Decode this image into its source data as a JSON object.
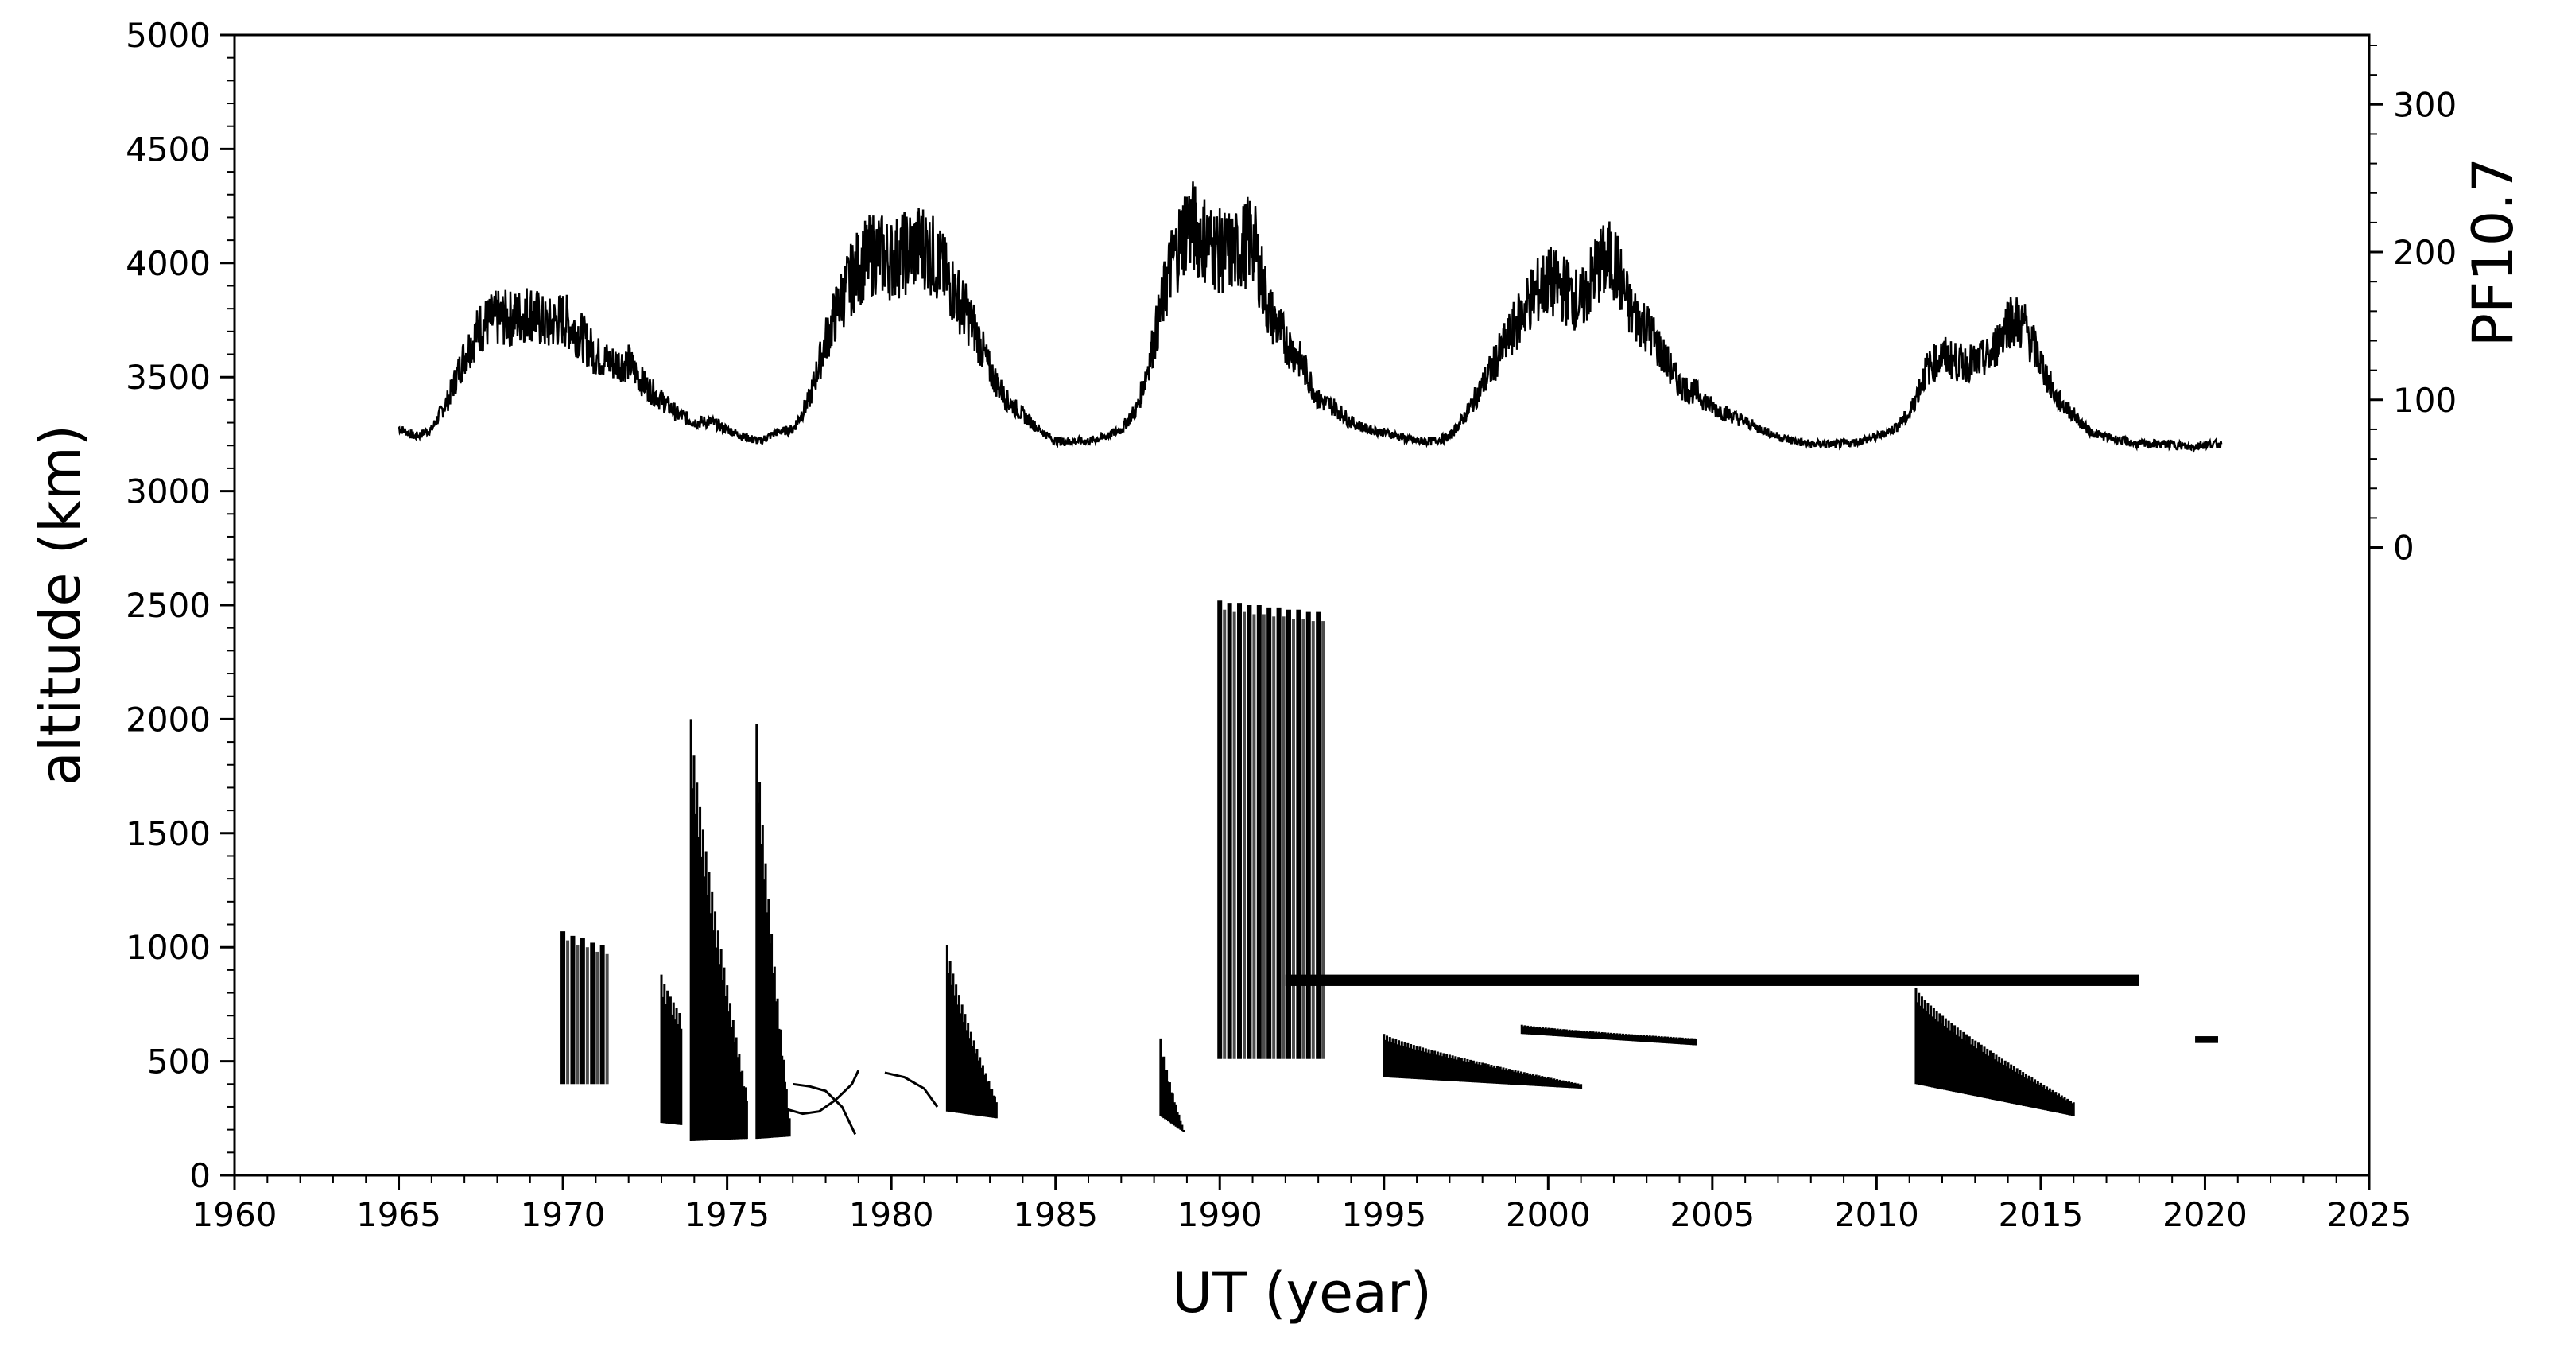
{
  "chart_data": {
    "type": "scatter",
    "title": "",
    "xlabel": "UT (year)",
    "ylabel": "altitude (km)",
    "y2label": "PF10.7",
    "xlim": [
      1960,
      2025
    ],
    "ylim": [
      0,
      5000
    ],
    "y2lim": [
      -425,
      347
    ],
    "grid": false,
    "x_ticks": [
      1960,
      1965,
      1970,
      1975,
      1980,
      1985,
      1990,
      1995,
      2000,
      2005,
      2010,
      2015,
      2020,
      2025
    ],
    "y_ticks": [
      0,
      500,
      1000,
      1500,
      2000,
      2500,
      3000,
      3500,
      4000,
      4500,
      5000
    ],
    "y2_ticks": [
      0,
      100,
      200,
      300
    ],
    "color": "#000000",
    "pf107_series": {
      "name": "PF10.7",
      "x": [
        1965.0,
        1965.5,
        1966.0,
        1966.5,
        1967.0,
        1967.5,
        1968.0,
        1968.5,
        1969.0,
        1969.5,
        1970.0,
        1970.5,
        1971.0,
        1971.5,
        1972.0,
        1972.5,
        1973.0,
        1973.5,
        1974.0,
        1974.5,
        1975.0,
        1975.5,
        1976.0,
        1976.5,
        1977.0,
        1977.5,
        1978.0,
        1978.5,
        1979.0,
        1979.5,
        1980.0,
        1980.5,
        1981.0,
        1981.5,
        1982.0,
        1982.5,
        1983.0,
        1983.5,
        1984.0,
        1984.5,
        1985.0,
        1985.5,
        1986.0,
        1986.5,
        1987.0,
        1987.5,
        1988.0,
        1988.5,
        1989.0,
        1989.5,
        1990.0,
        1990.5,
        1991.0,
        1991.5,
        1992.0,
        1992.5,
        1993.0,
        1993.5,
        1994.0,
        1994.5,
        1995.0,
        1995.5,
        1996.0,
        1996.5,
        1997.0,
        1997.5,
        1998.0,
        1998.5,
        1999.0,
        1999.5,
        2000.0,
        2000.5,
        2001.0,
        2001.5,
        2002.0,
        2002.5,
        2003.0,
        2003.5,
        2004.0,
        2004.5,
        2005.0,
        2005.5,
        2006.0,
        2006.5,
        2007.0,
        2007.5,
        2008.0,
        2008.5,
        2009.0,
        2009.5,
        2010.0,
        2010.5,
        2011.0,
        2011.5,
        2012.0,
        2012.5,
        2013.0,
        2013.5,
        2014.0,
        2014.5,
        2015.0,
        2015.5,
        2016.0,
        2016.5,
        2017.0,
        2017.5,
        2018.0,
        2018.5,
        2019.0,
        2019.5,
        2020.0,
        2020.5
      ],
      "values": [
        81,
        75,
        80,
        100,
        130,
        150,
        155,
        155,
        160,
        150,
        155,
        145,
        130,
        125,
        125,
        110,
        100,
        90,
        85,
        85,
        80,
        75,
        72,
        78,
        80,
        100,
        140,
        170,
        190,
        200,
        195,
        200,
        205,
        190,
        170,
        150,
        120,
        100,
        90,
        80,
        72,
        72,
        72,
        75,
        80,
        95,
        140,
        190,
        220,
        210,
        200,
        200,
        210,
        160,
        140,
        125,
        100,
        95,
        85,
        80,
        78,
        75,
        72,
        72,
        75,
        90,
        110,
        130,
        150,
        170,
        180,
        175,
        165,
        190,
        195,
        160,
        150,
        130,
        110,
        105,
        95,
        90,
        85,
        80,
        75,
        72,
        70,
        70,
        70,
        72,
        75,
        80,
        90,
        120,
        130,
        125,
        125,
        130,
        155,
        150,
        125,
        100,
        90,
        78,
        75,
        72,
        70,
        70,
        70,
        68,
        70,
        70
      ]
    },
    "altitude_series": {
      "name": "altitude",
      "segments": [
        {
          "type": "bars",
          "x": [
            1970.0,
            1970.3,
            1970.6,
            1970.9,
            1971.2
          ],
          "lo": [
            400,
            400,
            400,
            400,
            400
          ],
          "hi": [
            1070,
            1050,
            1040,
            1020,
            1010
          ]
        },
        {
          "type": "decay",
          "x0": 1973.0,
          "x1": 1973.6,
          "hi0": 880,
          "hi1": 700,
          "lo0": 230,
          "lo1": 220
        },
        {
          "type": "decay",
          "x0": 1973.9,
          "x1": 1975.6,
          "hi0": 2000,
          "hi1": 350,
          "lo0": 150,
          "lo1": 160
        },
        {
          "type": "decay",
          "x0": 1975.9,
          "x1": 1976.9,
          "hi0": 1980,
          "hi1": 250,
          "lo0": 160,
          "lo1": 170
        },
        {
          "type": "curve",
          "x": [
            1976.8,
            1977.3,
            1977.8,
            1978.3,
            1978.8,
            1979.0
          ],
          "y": [
            290,
            270,
            280,
            330,
            400,
            460
          ]
        },
        {
          "type": "curve",
          "x": [
            1977.0,
            1977.5,
            1978.0,
            1978.5,
            1978.9
          ],
          "y": [
            400,
            390,
            370,
            300,
            180
          ]
        },
        {
          "type": "curve",
          "x": [
            1979.8,
            1980.4,
            1981.0,
            1981.4
          ],
          "y": [
            450,
            430,
            380,
            300
          ]
        },
        {
          "type": "decay",
          "x0": 1981.7,
          "x1": 1983.2,
          "hi0": 1010,
          "hi1": 330,
          "lo0": 280,
          "lo1": 250
        },
        {
          "type": "decay",
          "x0": 1988.2,
          "x1": 1988.9,
          "hi0": 600,
          "hi1": 200,
          "lo0": 260,
          "lo1": 190
        },
        {
          "type": "bars",
          "x": [
            1990.0,
            1990.3,
            1990.6,
            1990.9,
            1991.2,
            1991.5,
            1991.8,
            1992.1,
            1992.4,
            1992.7,
            1993.0
          ],
          "lo": [
            510,
            510,
            510,
            510,
            510,
            510,
            510,
            510,
            510,
            510,
            510
          ],
          "hi": [
            2520,
            2510,
            2510,
            2500,
            2500,
            2490,
            2490,
            2480,
            2480,
            2470,
            2470
          ]
        },
        {
          "type": "band",
          "x0": 1992.0,
          "x1": 2018.0,
          "lo": 830,
          "hi": 880
        },
        {
          "type": "decay",
          "x0": 1995.0,
          "x1": 2001.0,
          "hi0": 620,
          "hi1": 400,
          "lo0": 430,
          "lo1": 380
        },
        {
          "type": "decay",
          "x0": 1999.2,
          "x1": 2004.5,
          "hi0": 660,
          "hi1": 600,
          "lo0": 620,
          "lo1": 570
        },
        {
          "type": "decay",
          "x0": 2011.2,
          "x1": 2016.0,
          "hi0": 820,
          "hi1": 320,
          "lo0": 400,
          "lo1": 260
        },
        {
          "type": "band",
          "x0": 2019.7,
          "x1": 2020.4,
          "lo": 580,
          "hi": 610
        }
      ]
    }
  }
}
